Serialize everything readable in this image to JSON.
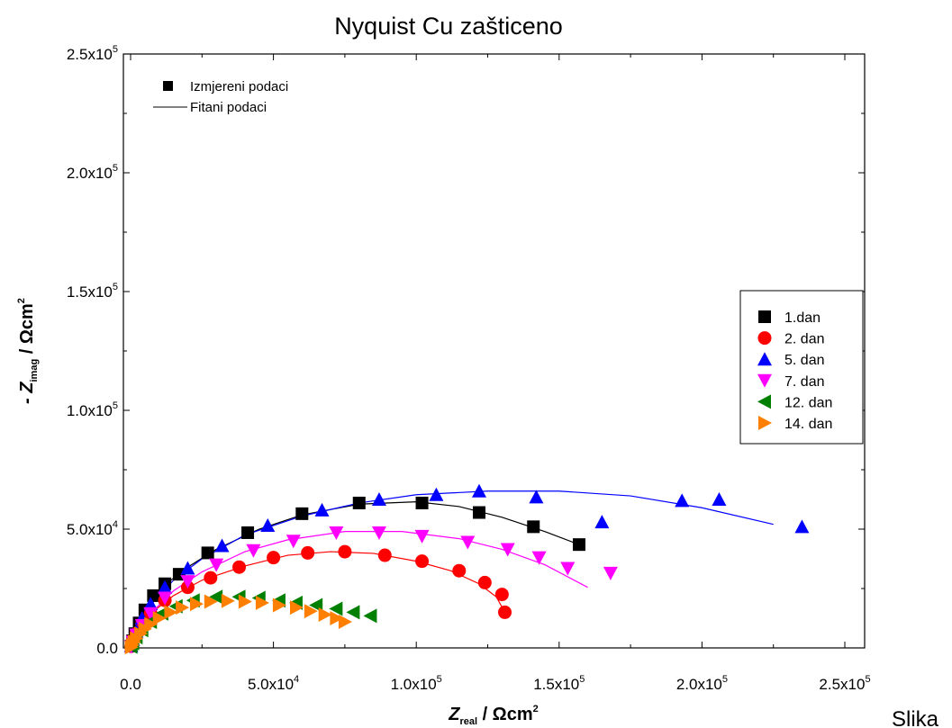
{
  "chart_data": {
    "type": "scatter",
    "title": "Nyquist Cu zašticeno",
    "xlabel": {
      "main": "Z",
      "sub": "real",
      "unit": " / Ωcm",
      "sup": "2"
    },
    "ylabel": {
      "prefix": "- Z",
      "sub": "imag",
      "unit": " / Ωcm",
      "sup": "2"
    },
    "xlim": [
      0,
      250000
    ],
    "ylim": [
      0,
      250000
    ],
    "x_ticks": [
      {
        "value": 0,
        "mantissa": "0.0",
        "exp": ""
      },
      {
        "value": 50000,
        "mantissa": "5.0x10",
        "exp": "4"
      },
      {
        "value": 100000,
        "mantissa": "1.0x10",
        "exp": "5"
      },
      {
        "value": 150000,
        "mantissa": "1.5x10",
        "exp": "5"
      },
      {
        "value": 200000,
        "mantissa": "2.0x10",
        "exp": "5"
      },
      {
        "value": 250000,
        "mantissa": "2.5x10",
        "exp": "5"
      }
    ],
    "y_ticks": [
      {
        "value": 0,
        "mantissa": "0.0",
        "exp": ""
      },
      {
        "value": 50000,
        "mantissa": "5.0x10",
        "exp": "4"
      },
      {
        "value": 100000,
        "mantissa": "1.0x10",
        "exp": "5"
      },
      {
        "value": 150000,
        "mantissa": "1.5x10",
        "exp": "5"
      },
      {
        "value": 200000,
        "mantissa": "2.0x10",
        "exp": "5"
      },
      {
        "value": 250000,
        "mantissa": "2.5x10",
        "exp": "5"
      }
    ],
    "grid": false,
    "legend_position": "right",
    "key_legend": {
      "measured": "Izmjereni podaci",
      "fitted": "Fitani podaci"
    },
    "series": [
      {
        "name": "1.dan",
        "marker": "square",
        "color": "#000000",
        "points": [
          [
            200,
            800
          ],
          [
            700,
            3000
          ],
          [
            1500,
            6000
          ],
          [
            3000,
            10500
          ],
          [
            5000,
            16000
          ],
          [
            8000,
            22000
          ],
          [
            12000,
            27000
          ],
          [
            17000,
            31000
          ],
          [
            27000,
            40000
          ],
          [
            41000,
            48500
          ],
          [
            60000,
            56500
          ],
          [
            80000,
            61000
          ],
          [
            102000,
            61000
          ],
          [
            122000,
            57000
          ],
          [
            141000,
            51000
          ],
          [
            157000,
            43500
          ]
        ],
        "fit": [
          [
            0,
            0
          ],
          [
            1500,
            6000
          ],
          [
            5000,
            16000
          ],
          [
            12000,
            26500
          ],
          [
            20000,
            34000
          ],
          [
            30000,
            41500
          ],
          [
            45000,
            50000
          ],
          [
            60000,
            56000
          ],
          [
            80000,
            60500
          ],
          [
            100000,
            61500
          ],
          [
            115000,
            59500
          ],
          [
            130000,
            55000
          ],
          [
            145000,
            49000
          ],
          [
            157000,
            43500
          ]
        ]
      },
      {
        "name": "2. dan",
        "marker": "circle",
        "color": "#ff0000",
        "points": [
          [
            200,
            700
          ],
          [
            800,
            3000
          ],
          [
            2000,
            6000
          ],
          [
            4000,
            10000
          ],
          [
            7000,
            14500
          ],
          [
            12000,
            20000
          ],
          [
            20000,
            25500
          ],
          [
            28000,
            29500
          ],
          [
            38000,
            34000
          ],
          [
            50000,
            38000
          ],
          [
            62000,
            40000
          ],
          [
            75000,
            40500
          ],
          [
            89000,
            39000
          ],
          [
            102000,
            36500
          ],
          [
            115000,
            32500
          ],
          [
            124000,
            27500
          ],
          [
            130000,
            22500
          ],
          [
            131000,
            15000
          ]
        ],
        "fit": [
          [
            0,
            0
          ],
          [
            2000,
            6000
          ],
          [
            7000,
            14500
          ],
          [
            15000,
            22000
          ],
          [
            25000,
            28500
          ],
          [
            40000,
            34500
          ],
          [
            55000,
            39000
          ],
          [
            70000,
            40500
          ],
          [
            85000,
            39800
          ],
          [
            100000,
            36500
          ],
          [
            112000,
            32500
          ],
          [
            122000,
            27000
          ],
          [
            128000,
            21500
          ],
          [
            131000,
            15000
          ]
        ]
      },
      {
        "name": "5. dan",
        "marker": "triangle-up",
        "color": "#0000ff",
        "points": [
          [
            200,
            900
          ],
          [
            800,
            3500
          ],
          [
            2000,
            7000
          ],
          [
            4000,
            12500
          ],
          [
            7000,
            18500
          ],
          [
            12000,
            25500
          ],
          [
            20000,
            33500
          ],
          [
            32000,
            43000
          ],
          [
            48000,
            51500
          ],
          [
            67000,
            58000
          ],
          [
            87000,
            62500
          ],
          [
            107000,
            64500
          ],
          [
            122000,
            66000
          ],
          [
            142000,
            63500
          ],
          [
            165000,
            53000
          ],
          [
            193000,
            62000
          ],
          [
            206000,
            62500
          ],
          [
            235000,
            51000
          ]
        ],
        "fit": [
          [
            0,
            0
          ],
          [
            2000,
            7000
          ],
          [
            7000,
            18000
          ],
          [
            15000,
            28500
          ],
          [
            25000,
            37500
          ],
          [
            40000,
            47500
          ],
          [
            60000,
            55500
          ],
          [
            80000,
            61000
          ],
          [
            100000,
            64500
          ],
          [
            125000,
            66000
          ],
          [
            150000,
            66000
          ],
          [
            175000,
            64000
          ],
          [
            200000,
            59000
          ],
          [
            225000,
            52000
          ]
        ]
      },
      {
        "name": "7. dan",
        "marker": "triangle-down",
        "color": "#ff00ff",
        "points": [
          [
            200,
            600
          ],
          [
            800,
            2500
          ],
          [
            2000,
            5500
          ],
          [
            4000,
            9500
          ],
          [
            7000,
            14500
          ],
          [
            12000,
            21000
          ],
          [
            20000,
            28000
          ],
          [
            30000,
            35000
          ],
          [
            43000,
            41000
          ],
          [
            57000,
            45000
          ],
          [
            72000,
            48500
          ],
          [
            87000,
            48500
          ],
          [
            102000,
            47000
          ],
          [
            118000,
            44500
          ],
          [
            132000,
            41500
          ],
          [
            143000,
            38000
          ],
          [
            153000,
            33500
          ],
          [
            168000,
            31500
          ]
        ],
        "fit": [
          [
            0,
            0
          ],
          [
            2000,
            5500
          ],
          [
            7000,
            14500
          ],
          [
            15000,
            24000
          ],
          [
            25000,
            32000
          ],
          [
            40000,
            40500
          ],
          [
            55000,
            45500
          ],
          [
            75000,
            49000
          ],
          [
            95000,
            49000
          ],
          [
            115000,
            46000
          ],
          [
            130000,
            41500
          ],
          [
            145000,
            35000
          ],
          [
            160000,
            25500
          ]
        ]
      },
      {
        "name": "12. dan",
        "marker": "triangle-left",
        "color": "#008000",
        "points": [
          [
            200,
            500
          ],
          [
            800,
            2000
          ],
          [
            2000,
            4500
          ],
          [
            4000,
            7500
          ],
          [
            7000,
            11000
          ],
          [
            11000,
            14500
          ],
          [
            16000,
            17500
          ],
          [
            22000,
            20000
          ],
          [
            30000,
            21500
          ],
          [
            38000,
            21500
          ],
          [
            45000,
            21000
          ],
          [
            52000,
            20000
          ],
          [
            58000,
            19000
          ],
          [
            65000,
            18000
          ],
          [
            72000,
            16500
          ],
          [
            78000,
            15000
          ],
          [
            84000,
            13500
          ]
        ],
        "fit": []
      },
      {
        "name": "14. dan",
        "marker": "triangle-right",
        "color": "#ff8000",
        "points": [
          [
            200,
            300
          ],
          [
            600,
            1200
          ],
          [
            1200,
            2500
          ],
          [
            2000,
            4000
          ],
          [
            3500,
            6000
          ],
          [
            5000,
            8000
          ],
          [
            7000,
            10000
          ],
          [
            10000,
            12500
          ],
          [
            14000,
            15000
          ],
          [
            18000,
            17000
          ],
          [
            23000,
            18500
          ],
          [
            28000,
            19500
          ],
          [
            34000,
            19800
          ],
          [
            40000,
            19500
          ],
          [
            46000,
            19000
          ],
          [
            52000,
            18000
          ],
          [
            58000,
            17000
          ],
          [
            63000,
            15500
          ],
          [
            68000,
            14000
          ],
          [
            72000,
            12500
          ],
          [
            75000,
            11000
          ]
        ],
        "fit": []
      }
    ]
  },
  "footer": {
    "caption": "Slika"
  }
}
